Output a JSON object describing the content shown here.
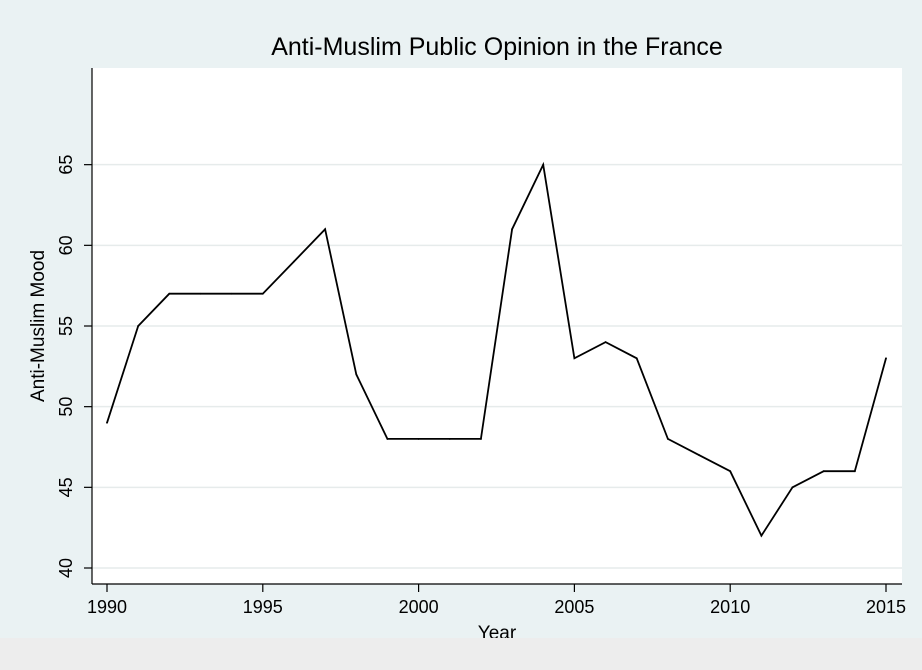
{
  "chart_data": {
    "type": "line",
    "title": "Anti-Muslim Public Opinion in the France",
    "xlabel": "Year",
    "ylabel": "Anti-Muslim Mood",
    "xlim": [
      1990,
      2015
    ],
    "ylim": [
      40,
      70
    ],
    "x_ticks": [
      1990,
      1995,
      2000,
      2005,
      2010,
      2015
    ],
    "y_ticks": [
      40,
      45,
      50,
      55,
      60,
      65
    ],
    "grid": true,
    "x": [
      1990,
      1991,
      1992,
      1993,
      1994,
      1995,
      1996,
      1997,
      1998,
      1999,
      2000,
      2001,
      2002,
      2003,
      2004,
      2005,
      2006,
      2007,
      2008,
      2009,
      2010,
      2011,
      2012,
      2013,
      2014,
      2015
    ],
    "series": [
      {
        "values": [
          49,
          55,
          57,
          57,
          57,
          57,
          59,
          61,
          52,
          48,
          48,
          48,
          48,
          61,
          65,
          53,
          54,
          53,
          48,
          47,
          46,
          42,
          45,
          46,
          46,
          53
        ]
      }
    ]
  },
  "colors": {
    "outer_background": "#eaf2f3",
    "plot_background": "#ffffff",
    "grid": "#e6ebeb",
    "line": "#000000"
  }
}
